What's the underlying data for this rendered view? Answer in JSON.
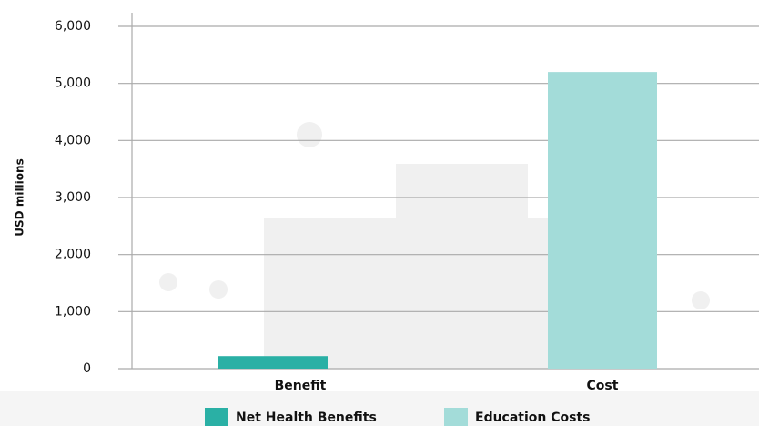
{
  "chart_data": {
    "type": "bar",
    "y_label": "USD millions",
    "categories": [
      "Benefit",
      "Cost"
    ],
    "series": [
      {
        "name": "Net Health Benefits",
        "color": "#2ab0a5",
        "values": [
          220,
          null
        ]
      },
      {
        "name": "Education Costs",
        "color": "#a3dcd9",
        "values": [
          null,
          5200
        ]
      }
    ],
    "ylim": [
      0,
      6000
    ],
    "yticks": [
      0,
      {
        "value": 1000,
        "label": "1,000"
      },
      {
        "value": 2000,
        "label": "2,000"
      },
      {
        "value": 3000,
        "label": "3,000"
      },
      {
        "value": 4000,
        "label": "4,000"
      },
      {
        "value": 5000,
        "label": "5,000"
      },
      {
        "value": 6000,
        "label": "6,000"
      }
    ],
    "grid": true
  }
}
